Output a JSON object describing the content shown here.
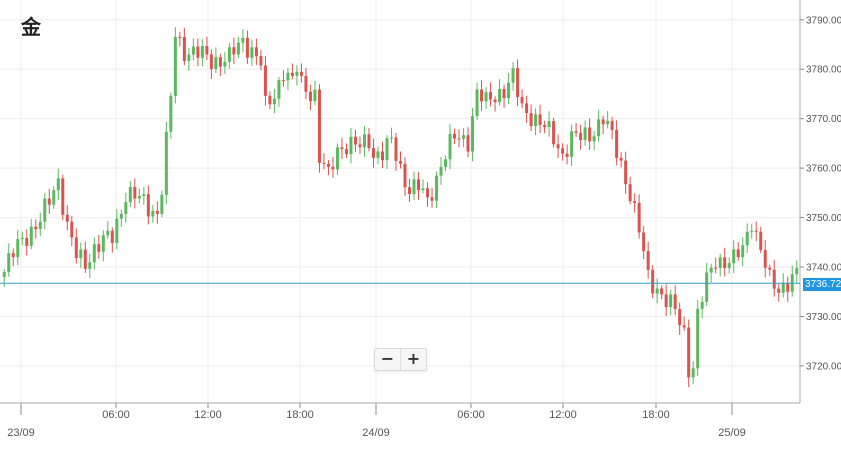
{
  "chart_data": {
    "type": "candlestick",
    "title": "金",
    "x_ticks": [
      "23/09",
      "06:00",
      "12:00",
      "18:00",
      "24/09",
      "06:00",
      "12:00",
      "18:00",
      "25/09"
    ],
    "y_ticks": [
      "3720.00",
      "3730.00",
      "3740.00",
      "3750.00",
      "3760.00",
      "3770.00",
      "3780.00",
      "3790.00"
    ],
    "ylim": [
      3712.5,
      3794
    ],
    "current_price": "3736.72",
    "colors": {
      "up": "#5cb85c",
      "down": "#d9534f",
      "price_line": "#3399cc",
      "grid": "#eeeeee",
      "axis": "#888888"
    },
    "waypoints": [
      [
        0,
        3739
      ],
      [
        4,
        3746
      ],
      [
        8,
        3749
      ],
      [
        12,
        3758
      ],
      [
        14,
        3748
      ],
      [
        16,
        3742
      ],
      [
        18,
        3741
      ],
      [
        20,
        3744
      ],
      [
        24,
        3746
      ],
      [
        27,
        3755
      ],
      [
        31,
        3753
      ],
      [
        34,
        3751
      ],
      [
        35,
        3756
      ],
      [
        37,
        3774
      ],
      [
        38,
        3787
      ],
      [
        40,
        3784
      ],
      [
        43,
        3783
      ],
      [
        46,
        3782
      ],
      [
        50,
        3782
      ],
      [
        53,
        3786
      ],
      [
        55,
        3784
      ],
      [
        57,
        3781
      ],
      [
        58,
        3772
      ],
      [
        60,
        3775
      ],
      [
        62,
        3780
      ],
      [
        64,
        3777
      ],
      [
        65,
        3780
      ],
      [
        66,
        3777
      ],
      [
        69,
        3775
      ],
      [
        70,
        3762
      ],
      [
        72,
        3758
      ],
      [
        74,
        3764
      ],
      [
        76,
        3765
      ],
      [
        79,
        3764
      ],
      [
        81,
        3766
      ],
      [
        82,
        3763
      ],
      [
        84,
        3763
      ],
      [
        86,
        3765
      ],
      [
        88,
        3760
      ],
      [
        90,
        3756
      ],
      [
        92,
        3756
      ],
      [
        94,
        3753
      ],
      [
        97,
        3761
      ],
      [
        100,
        3766
      ],
      [
        103,
        3766
      ],
      [
        105,
        3775
      ],
      [
        107,
        3773
      ],
      [
        109,
        3775
      ],
      [
        111,
        3776
      ],
      [
        113,
        3778
      ],
      [
        115,
        3772
      ],
      [
        117,
        3771
      ],
      [
        120,
        3768
      ],
      [
        122,
        3766
      ],
      [
        124,
        3763
      ],
      [
        126,
        3766
      ],
      [
        128,
        3766
      ],
      [
        130,
        3767
      ],
      [
        133,
        3770
      ],
      [
        135,
        3766
      ],
      [
        137,
        3761
      ],
      [
        139,
        3755
      ],
      [
        141,
        3747
      ],
      [
        143,
        3738
      ],
      [
        145,
        3736
      ],
      [
        147,
        3733
      ],
      [
        149,
        3731
      ],
      [
        151,
        3727
      ],
      [
        152,
        3720
      ],
      [
        153,
        3720
      ],
      [
        154,
        3730
      ],
      [
        156,
        3737
      ],
      [
        158,
        3742
      ],
      [
        160,
        3741
      ],
      [
        162,
        3741
      ],
      [
        164,
        3744
      ],
      [
        166,
        3750
      ],
      [
        168,
        3743
      ],
      [
        170,
        3737
      ],
      [
        172,
        3736
      ],
      [
        174,
        3737
      ],
      [
        176,
        3738
      ]
    ],
    "candle_count": 177
  },
  "zoom": {
    "minus_label": "−",
    "plus_label": "+"
  }
}
